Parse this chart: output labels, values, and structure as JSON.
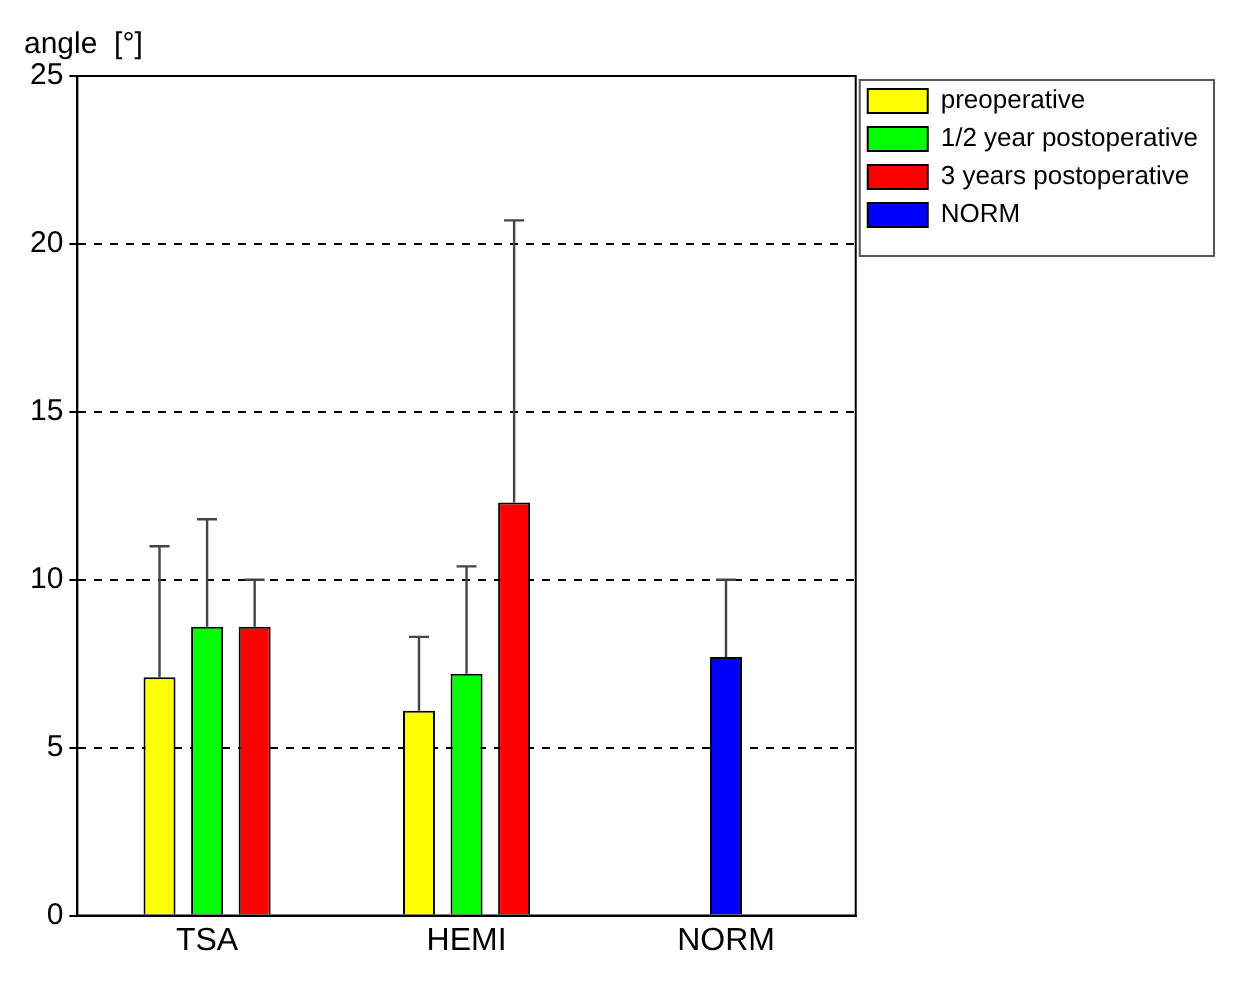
{
  "chart_data": {
    "type": "bar",
    "ylabel": "angle  [°]",
    "categories": [
      "TSA",
      "HEMI",
      "NORM"
    ],
    "series": [
      {
        "name": "preoperative",
        "color": "#ffff00",
        "values": [
          7.1,
          6.1,
          null
        ],
        "errors": [
          [
            7.1,
            11.0
          ],
          [
            6.1,
            8.3
          ],
          null
        ]
      },
      {
        "name": "1/2 year postoperative",
        "color": "#00ff00",
        "values": [
          8.6,
          7.2,
          null
        ],
        "errors": [
          [
            8.6,
            11.8
          ],
          [
            7.2,
            10.4
          ],
          null
        ]
      },
      {
        "name": "3 years postoperative",
        "color": "#ff0000",
        "values": [
          8.6,
          12.3,
          null
        ],
        "errors": [
          [
            8.6,
            10.0
          ],
          [
            12.3,
            20.7
          ],
          null
        ]
      },
      {
        "name": "NORM",
        "color": "#0000ff",
        "values": [
          null,
          null,
          7.7
        ],
        "errors": [
          null,
          null,
          [
            7.7,
            10.0
          ]
        ]
      }
    ],
    "ylim": [
      0,
      25
    ],
    "yticks": [
      0,
      5,
      10,
      15,
      20,
      25
    ],
    "grid": "y",
    "legend": "top right"
  }
}
